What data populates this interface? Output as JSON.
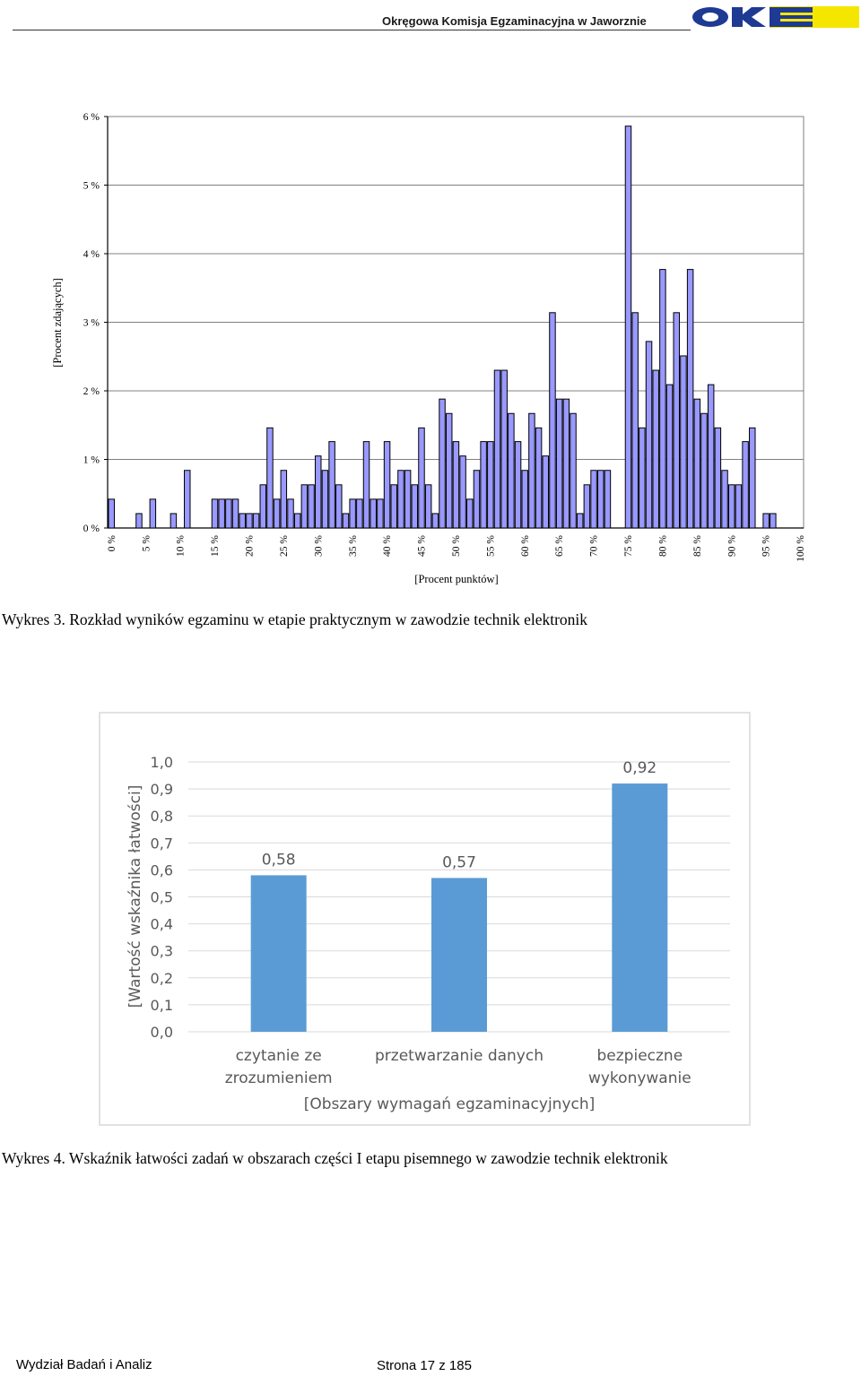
{
  "header": {
    "title": "Okręgowa Komisja Egzaminacyjna w Jaworznie",
    "logo_text": "OKE"
  },
  "chart_data": [
    {
      "type": "bar",
      "ylabel": "[Procent zdających]",
      "xlabel": "[Procent punktów]",
      "ylim": [
        0,
        6
      ],
      "yticks": [
        "0 %",
        "1 %",
        "2 %",
        "3 %",
        "4 %",
        "5 %",
        "6 %"
      ],
      "xticks": [
        "0 %",
        "5 %",
        "10 %",
        "15 %",
        "20 %",
        "25 %",
        "30 %",
        "35 %",
        "40 %",
        "45 %",
        "50 %",
        "55 %",
        "60 %",
        "65 %",
        "70 %",
        "75 %",
        "80 %",
        "85 %",
        "90 %",
        "95 %",
        "100 %"
      ],
      "x": [
        0,
        1,
        2,
        3,
        4,
        5,
        6,
        7,
        8,
        9,
        10,
        11,
        12,
        13,
        14,
        15,
        16,
        17,
        18,
        19,
        20,
        21,
        22,
        23,
        24,
        25,
        26,
        27,
        28,
        29,
        30,
        31,
        32,
        33,
        34,
        35,
        36,
        37,
        38,
        39,
        40,
        41,
        42,
        43,
        44,
        45,
        46,
        47,
        48,
        49,
        50,
        51,
        52,
        53,
        54,
        55,
        56,
        57,
        58,
        59,
        60,
        61,
        62,
        63,
        64,
        65,
        66,
        67,
        68,
        69,
        70,
        71,
        72,
        73,
        74,
        75,
        76,
        77,
        78,
        79,
        80,
        81,
        82,
        83,
        84,
        85,
        86,
        87,
        88,
        89,
        90,
        91,
        92,
        93,
        94,
        95,
        96,
        97,
        98,
        99,
        100
      ],
      "values": [
        0.42,
        0,
        0,
        0,
        0.21,
        0,
        0.42,
        0,
        0,
        0.21,
        0,
        0.84,
        0,
        0,
        0,
        0.42,
        0.42,
        0.42,
        0.42,
        0.21,
        0.21,
        0.21,
        0.63,
        1.46,
        0.42,
        0.84,
        0.42,
        0.21,
        0.63,
        0.63,
        1.05,
        0.84,
        1.26,
        0.63,
        0.21,
        0.42,
        0.42,
        1.26,
        0.42,
        0.42,
        1.26,
        0.63,
        0.84,
        0.84,
        0.63,
        1.46,
        0.63,
        0.21,
        1.88,
        1.67,
        1.26,
        1.05,
        0.42,
        0.84,
        1.26,
        1.26,
        2.3,
        2.3,
        1.67,
        1.26,
        0.84,
        1.67,
        1.46,
        1.05,
        3.14,
        1.88,
        1.88,
        1.67,
        0.21,
        0.63,
        0.84,
        0.84,
        0.84,
        0,
        0,
        5.86,
        3.14,
        1.46,
        2.72,
        2.3,
        3.77,
        2.09,
        3.14,
        2.51,
        3.77,
        1.88,
        1.67,
        2.09,
        1.46,
        0.84,
        0.63,
        0.63,
        1.26,
        1.46,
        0,
        0.21,
        0.21,
        0,
        0,
        0,
        0
      ],
      "colors": {
        "bar_fill": "#9999ff",
        "bar_stroke": "#000000",
        "grid": "#000000"
      }
    },
    {
      "type": "bar",
      "ylabel": "[Wartość wskaźnika łatwości]",
      "xlabel": "[Obszary wymagań egzaminacyjnych]",
      "ylim": [
        0,
        1.0
      ],
      "yticks": [
        "0,0",
        "0,1",
        "0,2",
        "0,3",
        "0,4",
        "0,5",
        "0,6",
        "0,7",
        "0,8",
        "0,9",
        "1,0"
      ],
      "categories": [
        [
          "czytanie ze",
          "zrozumieniem"
        ],
        [
          "przetwarzanie danych"
        ],
        [
          "bezpieczne",
          "wykonywanie"
        ]
      ],
      "values": [
        0.58,
        0.57,
        0.92
      ],
      "data_labels": [
        "0,58",
        "0,57",
        "0,92"
      ],
      "colors": {
        "bar_fill": "#5b9bd5",
        "grid": "#d9d9d9",
        "text": "#595959"
      }
    }
  ],
  "captions": {
    "chart1": "Wykres 3. Rozkład wyników egzaminu w etapie praktycznym w zawodzie technik elektronik",
    "chart2": "Wykres 4. Wskaźnik łatwości zadań w obszarach części I etapu pisemnego w zawodzie technik elektronik"
  },
  "footer": {
    "left": "Wydział Badań i Analiz",
    "right": "Strona 17 z 185"
  }
}
